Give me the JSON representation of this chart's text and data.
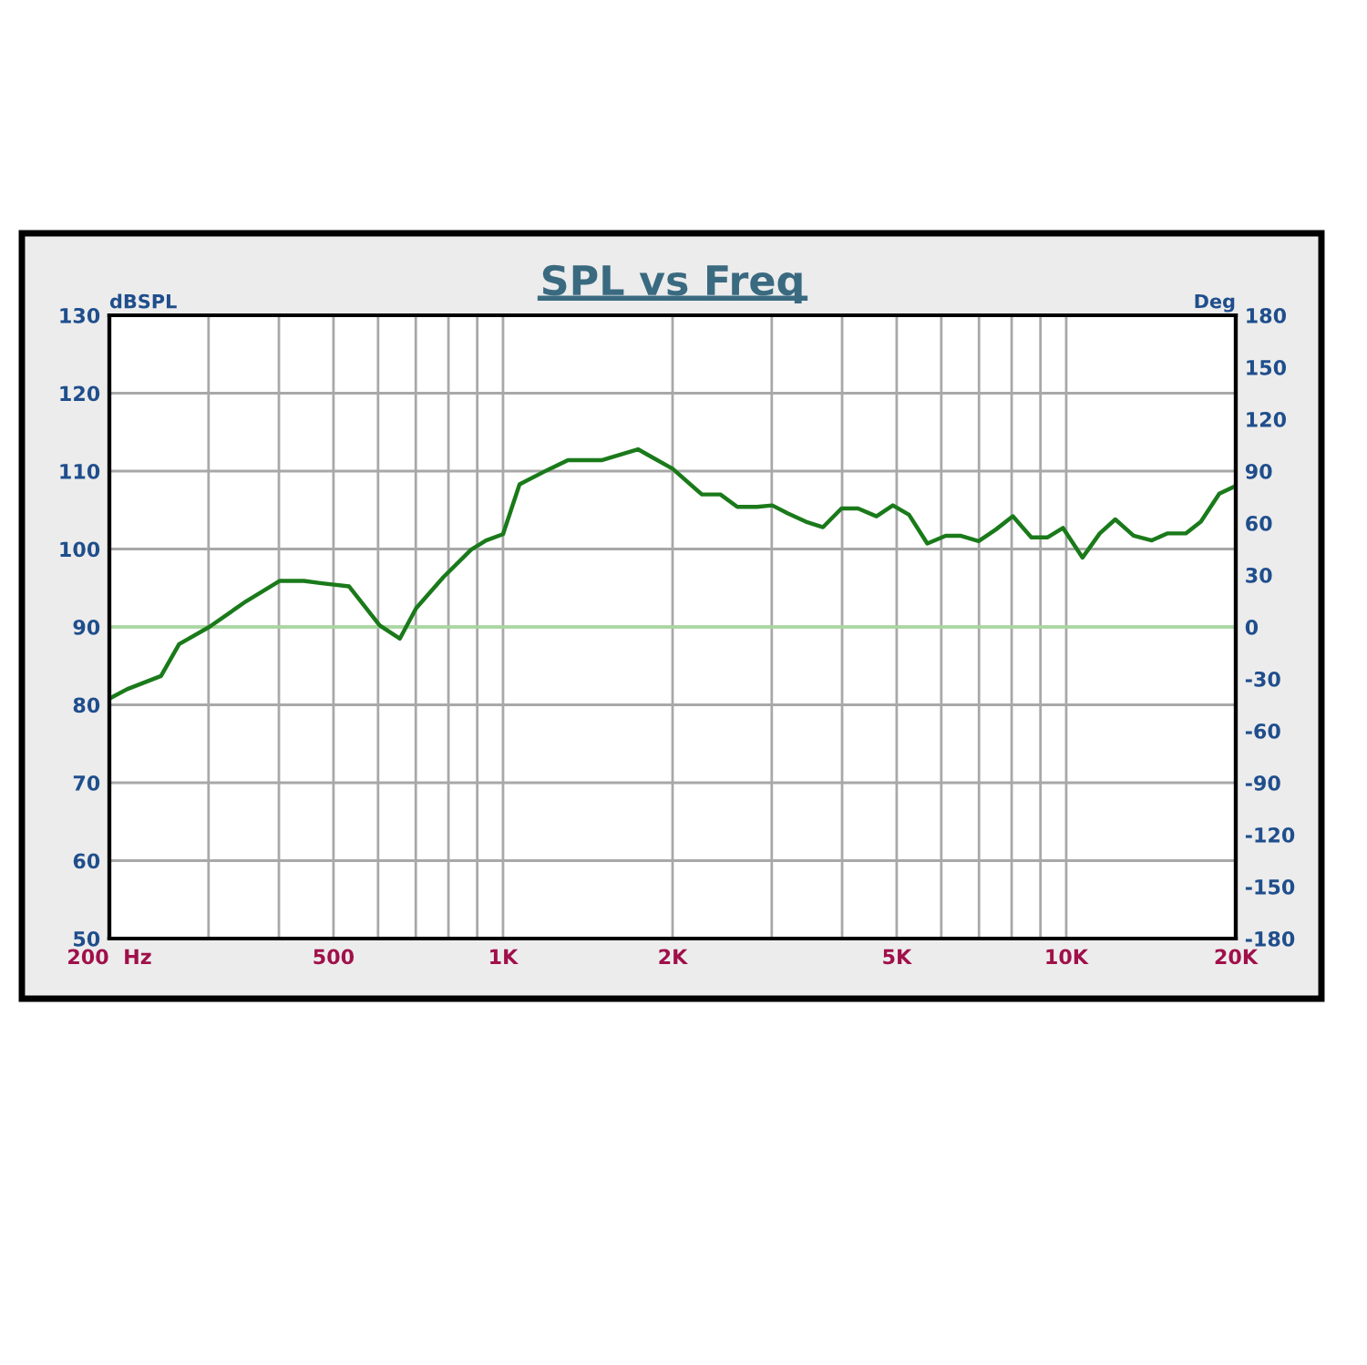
{
  "chart_data": {
    "type": "line",
    "title": "SPL vs Freq",
    "ylabel": "dBSPL",
    "y2label": "Deg",
    "x": [
      200,
      215,
      247,
      266,
      301,
      350,
      401,
      443,
      477,
      533,
      604,
      656,
      701,
      784,
      877,
      933,
      1000,
      1070,
      1196,
      1304,
      1496,
      1736,
      1848,
      2000,
      2255,
      2432,
      2606,
      2825,
      3007,
      3200,
      3450,
      3700,
      3990,
      4269,
      4603,
      4923,
      5258,
      5667,
      6108,
      6486,
      6990,
      7499,
      8040,
      8670,
      9270,
      9870,
      10690,
      11470,
      12220,
      13170,
      14190,
      15110,
      16300,
      17340,
      18700,
      20000
    ],
    "series": [
      {
        "color": "#1a7a1a",
        "values": [
          80.8,
          82.0,
          83.7,
          87.8,
          90.0,
          93.3,
          95.9,
          95.9,
          95.6,
          95.2,
          90.2,
          88.5,
          92.4,
          96.4,
          99.9,
          101.1,
          101.9,
          108.3,
          110.1,
          111.4,
          111.4,
          112.8,
          111.7,
          110.3,
          107.0,
          107.0,
          105.4,
          105.4,
          105.6,
          104.6,
          103.5,
          102.8,
          105.2,
          105.2,
          104.2,
          105.6,
          104.4,
          100.7,
          101.7,
          101.7,
          101.0,
          102.5,
          104.2,
          101.5,
          101.5,
          102.7,
          98.9,
          102.0,
          103.8,
          101.7,
          101.1,
          102.0,
          102.0,
          103.5,
          107.1,
          108.1
        ]
      }
    ],
    "log": "x",
    "xlim": [
      200,
      20000
    ],
    "xticks": [
      {
        "value": 200,
        "label": "200  Hz"
      },
      {
        "value": 300,
        "label": null
      },
      {
        "value": 400,
        "label": null
      },
      {
        "value": 500,
        "label": "500"
      },
      {
        "value": 600,
        "label": null
      },
      {
        "value": 700,
        "label": null
      },
      {
        "value": 800,
        "label": null
      },
      {
        "value": 900,
        "label": null
      },
      {
        "value": 1000,
        "label": "1K"
      },
      {
        "value": 2000,
        "label": "2K"
      },
      {
        "value": 3000,
        "label": null
      },
      {
        "value": 4000,
        "label": null
      },
      {
        "value": 5000,
        "label": "5K"
      },
      {
        "value": 6000,
        "label": null
      },
      {
        "value": 7000,
        "label": null
      },
      {
        "value": 8000,
        "label": null
      },
      {
        "value": 9000,
        "label": null
      },
      {
        "value": 10000,
        "label": "10K"
      },
      {
        "value": 20000,
        "label": "20K"
      }
    ],
    "ylim": [
      50,
      130
    ],
    "yticks": [
      50,
      60,
      70,
      80,
      90,
      100,
      110,
      120,
      130
    ],
    "y2lim": [
      -180,
      180
    ],
    "y2ticks": [
      -180,
      -150,
      -120,
      -90,
      -60,
      -30,
      0,
      30,
      60,
      90,
      120,
      150,
      180
    ],
    "ref_lines": [
      {
        "axis": "y",
        "value": 90,
        "color": "#a8d8a0"
      }
    ],
    "grid": true,
    "legend": false,
    "marker": "none",
    "line_style": "solid"
  }
}
